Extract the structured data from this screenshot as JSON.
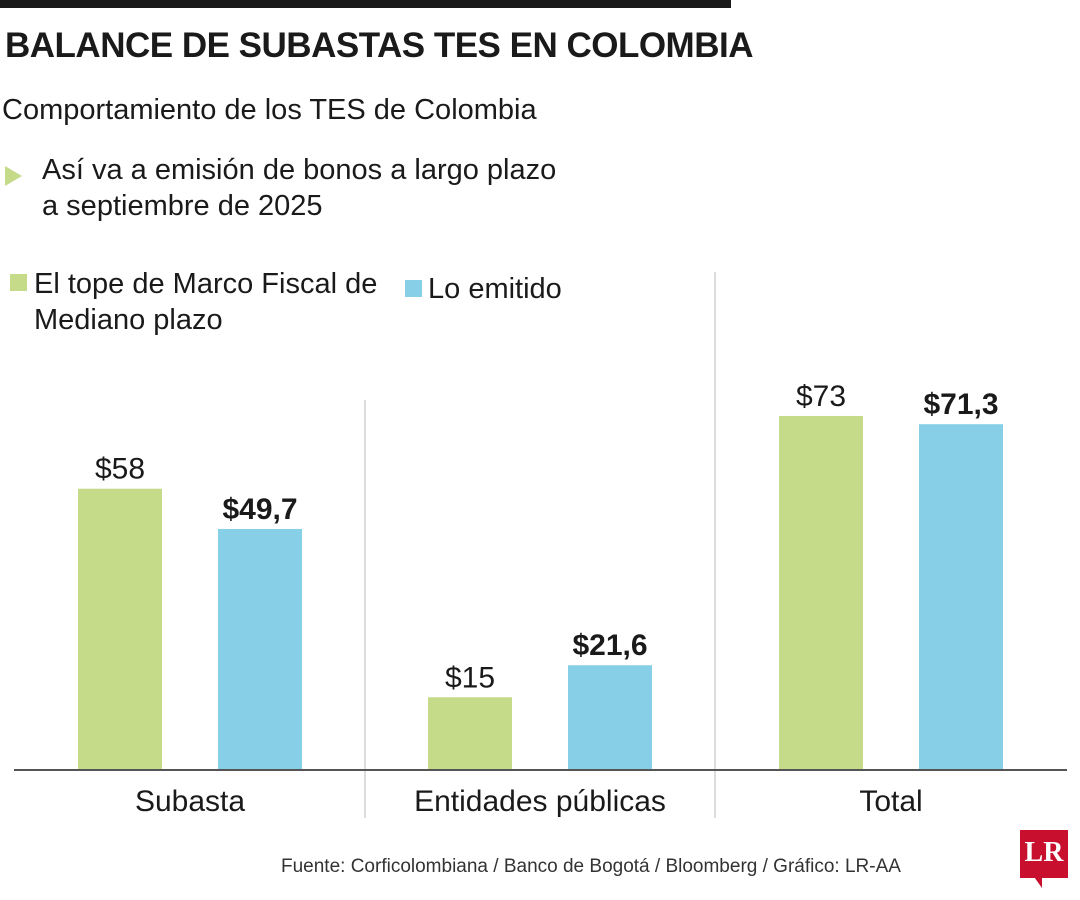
{
  "header": {
    "title": "BALANCE DE SUBASTAS TES EN COLOMBIA",
    "subtitle": "Comportamiento de los TES de Colombia",
    "description": "Así va a emisión de bonos a largo plazo a septiembre de 2025"
  },
  "footer": {
    "source": "Fuente: Corficolombiana / Banco de Bogotá / Bloomberg / Gráfico: LR-AA",
    "logo_text": "LR"
  },
  "colors": {
    "green": "#c5db8a",
    "blue": "#87cfe6",
    "axis": "#555555",
    "divider": "#bbbbbb"
  },
  "chart_data": {
    "type": "bar",
    "categories": [
      "Subasta",
      "Entidades públicas",
      "Total"
    ],
    "series": [
      {
        "name": "El tope de Marco Fiscal de Mediano plazo",
        "values": [
          58,
          15,
          73
        ],
        "labels": [
          "$58",
          "$15",
          "$73"
        ],
        "label_weight": "normal",
        "color": "#c5db8a"
      },
      {
        "name": "Lo emitido",
        "values": [
          49.7,
          21.6,
          71.3
        ],
        "labels": [
          "$49,7",
          "$21,6",
          "$71,3"
        ],
        "label_weight": "bold",
        "color": "#87cfe6"
      }
    ],
    "ylim": [
      0,
      80
    ],
    "grid": false,
    "legend_position": "top-left"
  }
}
